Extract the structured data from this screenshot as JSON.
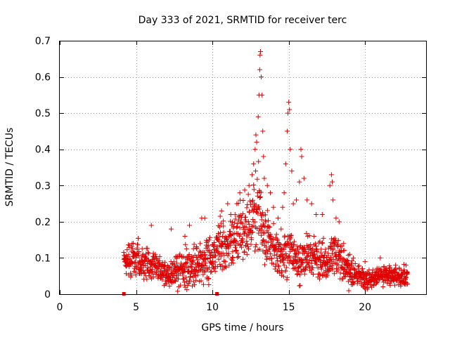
{
  "chart_data": {
    "type": "scatter",
    "title": "Day 333 of 2021, SRMTID for receiver terc",
    "xlabel": "GPS time / hours",
    "ylabel": "SRMTID / TECUs",
    "xlim": [
      0,
      24
    ],
    "ylim": [
      0,
      0.7
    ],
    "xticks": [
      0,
      5,
      10,
      15,
      20
    ],
    "xtick_labels": [
      "0",
      "5",
      "10",
      "15",
      "20"
    ],
    "yticks": [
      0,
      0.1,
      0.2,
      0.3,
      0.4,
      0.5,
      0.6,
      0.7
    ],
    "ytick_labels": [
      "0",
      "0.1",
      "0.2",
      "0.3",
      "0.4",
      "0.5",
      "0.6",
      "0.7"
    ],
    "grid": true,
    "marker": "plus",
    "color": "#e00000",
    "data_gap_markers_x": [
      4.2,
      10.3
    ],
    "envelope": {
      "description": "approximate median and spread of the point cloud vs hour",
      "hours": [
        4.2,
        5,
        6,
        7,
        8,
        9,
        10,
        10.5,
        11,
        11.5,
        12,
        12.5,
        13,
        13.5,
        14,
        14.5,
        15,
        15.5,
        16,
        16.5,
        17,
        17.5,
        18,
        18.5,
        19,
        20,
        21,
        22,
        22.8
      ],
      "median": [
        0.09,
        0.1,
        0.08,
        0.05,
        0.07,
        0.08,
        0.1,
        0.14,
        0.13,
        0.15,
        0.17,
        0.2,
        0.22,
        0.16,
        0.12,
        0.09,
        0.12,
        0.09,
        0.1,
        0.11,
        0.1,
        0.08,
        0.12,
        0.08,
        0.06,
        0.04,
        0.05,
        0.05,
        0.05
      ],
      "spread": [
        0.03,
        0.04,
        0.035,
        0.025,
        0.04,
        0.045,
        0.05,
        0.055,
        0.05,
        0.055,
        0.07,
        0.08,
        0.09,
        0.06,
        0.05,
        0.04,
        0.05,
        0.04,
        0.05,
        0.05,
        0.04,
        0.04,
        0.05,
        0.04,
        0.03,
        0.02,
        0.02,
        0.02,
        0.02
      ]
    },
    "points": [
      [
        6.0,
        0.19
      ],
      [
        7.3,
        0.18
      ],
      [
        8.2,
        0.16
      ],
      [
        8.5,
        0.19
      ],
      [
        9.3,
        0.21
      ],
      [
        9.5,
        0.21
      ],
      [
        10.6,
        0.23
      ],
      [
        11.0,
        0.25
      ],
      [
        11.2,
        0.22
      ],
      [
        11.6,
        0.25
      ],
      [
        11.8,
        0.28
      ],
      [
        12.4,
        0.3
      ],
      [
        12.6,
        0.33
      ],
      [
        12.7,
        0.36
      ],
      [
        12.8,
        0.4
      ],
      [
        12.85,
        0.44
      ],
      [
        12.9,
        0.42
      ],
      [
        13.0,
        0.49
      ],
      [
        13.05,
        0.55
      ],
      [
        13.1,
        0.62
      ],
      [
        13.12,
        0.66
      ],
      [
        13.15,
        0.67
      ],
      [
        13.2,
        0.6
      ],
      [
        13.25,
        0.55
      ],
      [
        13.3,
        0.45
      ],
      [
        13.35,
        0.38
      ],
      [
        13.4,
        0.32
      ],
      [
        13.6,
        0.3
      ],
      [
        13.8,
        0.28
      ],
      [
        14.0,
        0.24
      ],
      [
        14.3,
        0.21
      ],
      [
        14.5,
        0.18
      ],
      [
        14.6,
        0.24
      ],
      [
        14.7,
        0.28
      ],
      [
        14.8,
        0.36
      ],
      [
        14.9,
        0.45
      ],
      [
        14.95,
        0.5
      ],
      [
        15.0,
        0.53
      ],
      [
        15.05,
        0.51
      ],
      [
        15.1,
        0.4
      ],
      [
        15.2,
        0.34
      ],
      [
        15.3,
        0.25
      ],
      [
        15.5,
        0.26
      ],
      [
        15.7,
        0.31
      ],
      [
        15.8,
        0.4
      ],
      [
        15.85,
        0.38
      ],
      [
        16.0,
        0.32
      ],
      [
        16.2,
        0.26
      ],
      [
        16.5,
        0.25
      ],
      [
        16.8,
        0.22
      ],
      [
        17.2,
        0.22
      ],
      [
        17.7,
        0.3
      ],
      [
        17.8,
        0.33
      ],
      [
        17.85,
        0.31
      ],
      [
        17.9,
        0.26
      ],
      [
        18.1,
        0.21
      ],
      [
        18.3,
        0.2
      ],
      [
        18.6,
        0.14
      ],
      [
        19.0,
        0.11
      ],
      [
        20.0,
        0.09
      ],
      [
        21.0,
        0.1
      ],
      [
        22.0,
        0.08
      ]
    ]
  }
}
